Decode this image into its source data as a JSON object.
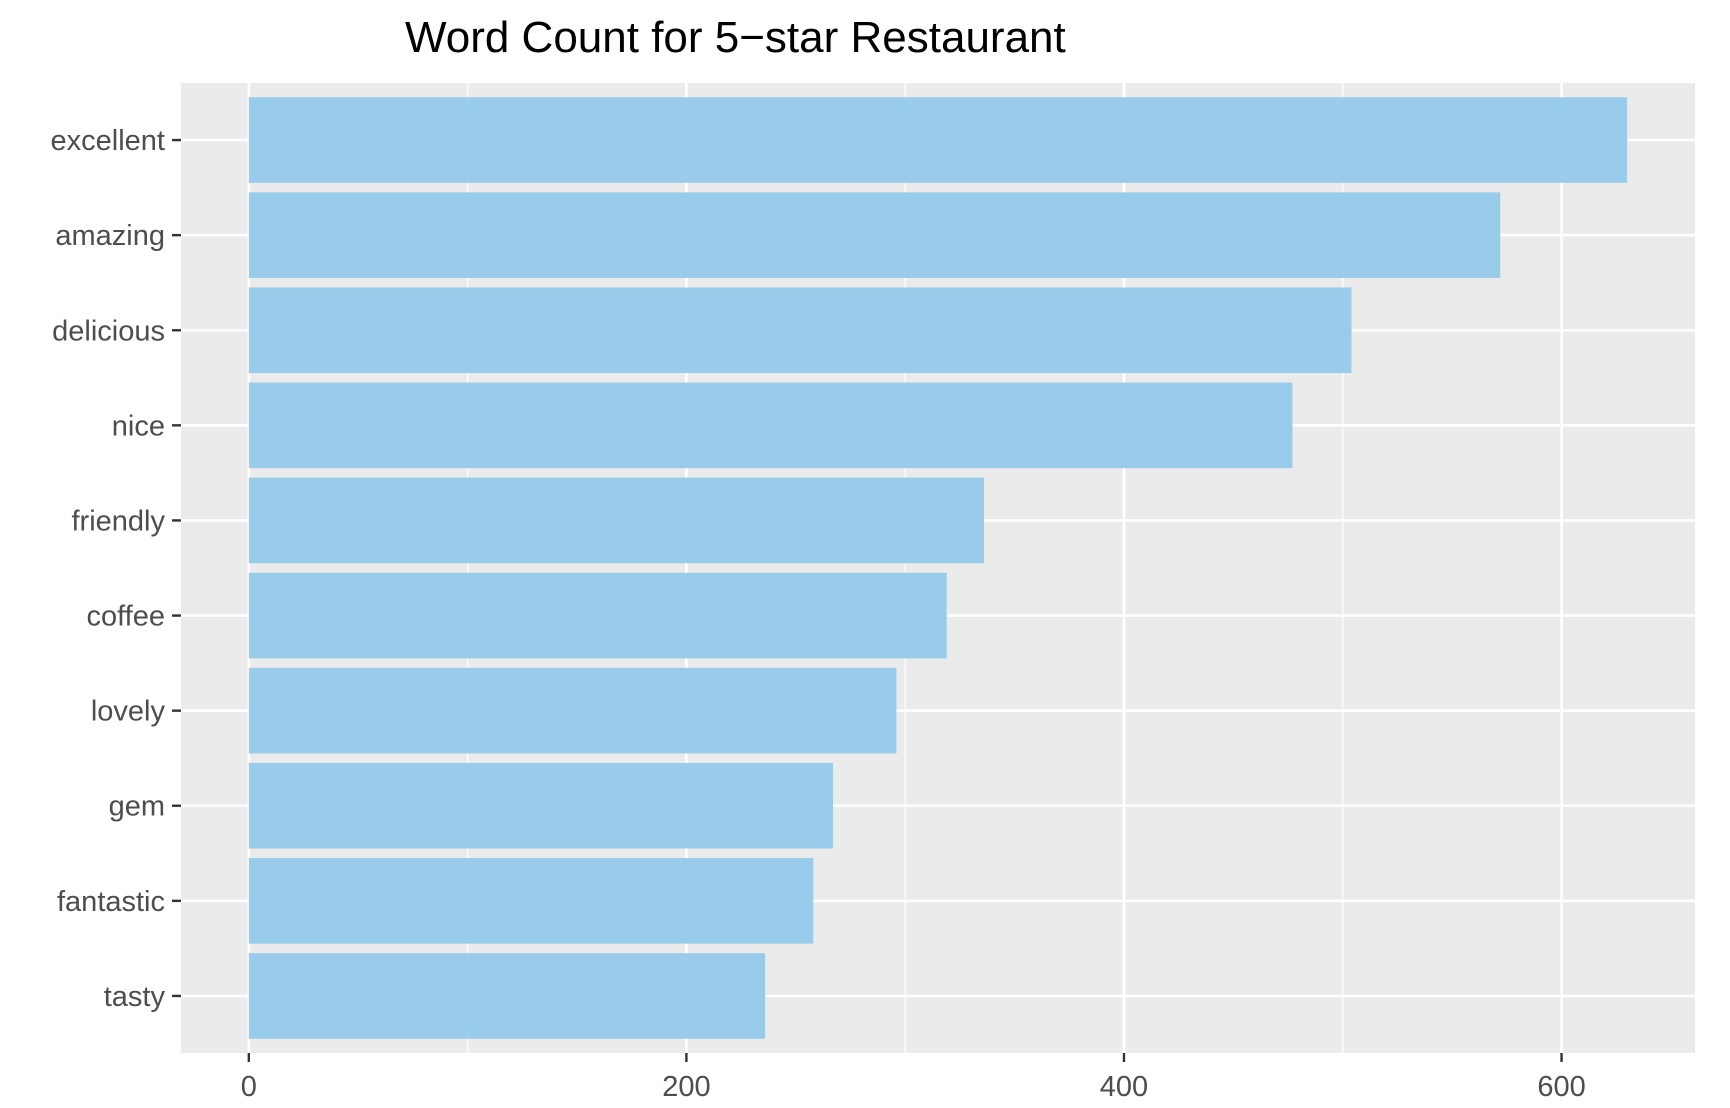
{
  "chart_data": {
    "type": "bar",
    "orientation": "horizontal",
    "title": "Word Count for 5−star Restaurant",
    "xlabel": "",
    "ylabel": "",
    "categories": [
      "excellent",
      "amazing",
      "delicious",
      "nice",
      "friendly",
      "coffee",
      "lovely",
      "gem",
      "fantastic",
      "tasty"
    ],
    "values": [
      630,
      572,
      504,
      477,
      336,
      319,
      296,
      267,
      258,
      236
    ],
    "xlim": [
      -31,
      661
    ],
    "x_ticks": [
      0,
      200,
      400,
      600
    ],
    "x_tick_labels": [
      "0",
      "200",
      "400",
      "600"
    ],
    "grid": true,
    "legend": "none",
    "colors": {
      "bar": "#99CCEB",
      "panel": "#EBEBEB",
      "grid": "#FFFFFF",
      "tick_text": "#4D4D4D",
      "title_text": "#000000",
      "tick_mark": "#333333"
    }
  }
}
